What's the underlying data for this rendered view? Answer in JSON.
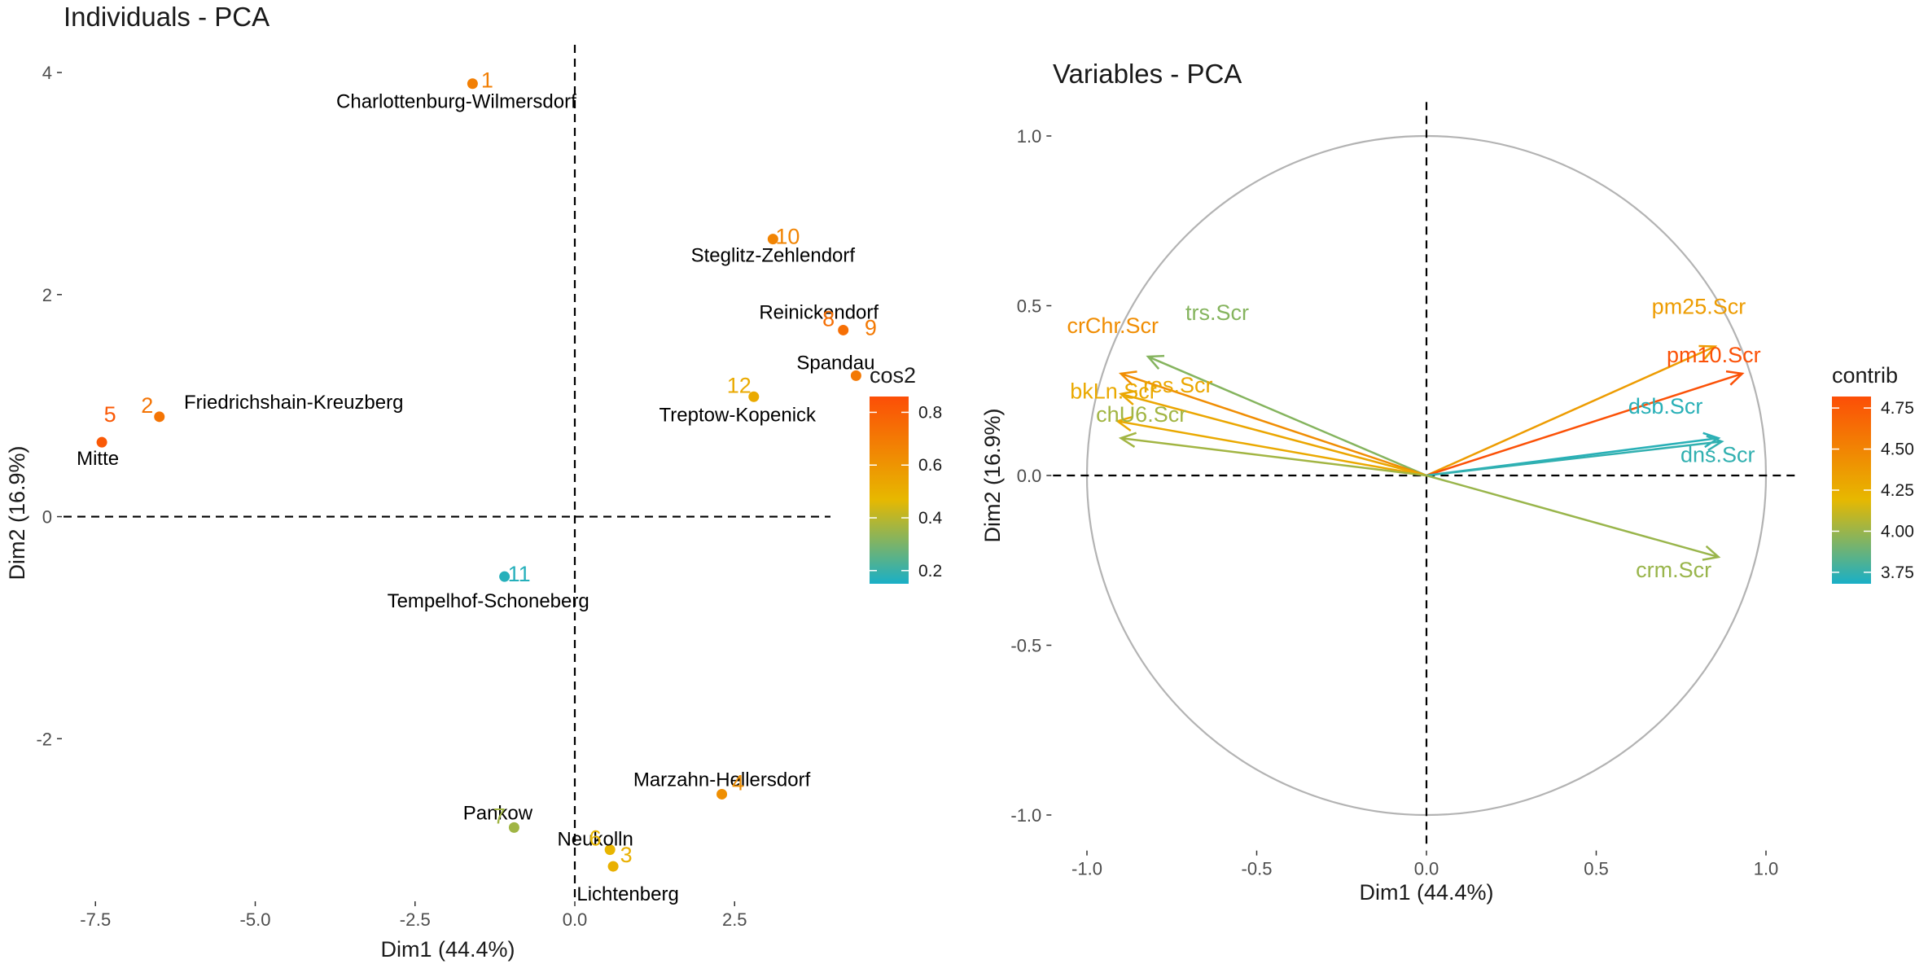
{
  "chart_data": [
    {
      "type": "scatter",
      "title": "Individuals - PCA",
      "xlabel": "Dim1 (44.4%)",
      "ylabel": "Dim2 (16.9%)",
      "xlim": [
        -8,
        4
      ],
      "ylim": [
        -3.45,
        4.25
      ],
      "xticks": [
        -7.5,
        -5.0,
        -2.5,
        0.0,
        2.5
      ],
      "yticks": [
        -2,
        0,
        2,
        4
      ],
      "grid": false,
      "legend": {
        "title": "cos2",
        "position": "right",
        "min": 0.15,
        "max": 0.86,
        "ticks": [
          0.2,
          0.4,
          0.6,
          0.8
        ]
      },
      "points": [
        {
          "num": "1",
          "name": "Charlottenburg-Wilmersdorf",
          "x": -1.6,
          "y": 3.9,
          "cos2": 0.68
        },
        {
          "num": "10",
          "name": "Steglitz-Zehlendorf",
          "x": 3.1,
          "y": 2.5,
          "cos2": 0.66
        },
        {
          "num": "8",
          "name": "Reinickendorf",
          "x": 4.2,
          "y": 1.68,
          "cos2": 0.74
        },
        {
          "num": "9",
          "name": "Spandau",
          "x": 4.4,
          "y": 1.27,
          "cos2": 0.7
        },
        {
          "num": "12",
          "name": "Treptow-Kopenick",
          "x": 2.8,
          "y": 1.08,
          "cos2": 0.52
        },
        {
          "num": "2",
          "name": "Friedrichshain-Kreuzberg",
          "x": -6.5,
          "y": 0.9,
          "cos2": 0.72
        },
        {
          "num": "5",
          "name": "Mitte",
          "x": -7.4,
          "y": 0.67,
          "cos2": 0.82
        },
        {
          "num": "11",
          "name": "Tempelhof-Schoneberg",
          "x": -1.1,
          "y": -0.54,
          "cos2": 0.17
        },
        {
          "num": "4",
          "name": "Marzahn-Hellersdorf",
          "x": 2.3,
          "y": -2.5,
          "cos2": 0.62
        },
        {
          "num": "7",
          "name": "Pankow",
          "x": -0.95,
          "y": -2.8,
          "cos2": 0.36
        },
        {
          "num": "6",
          "name": "Neukolln",
          "x": 0.55,
          "y": -3.0,
          "cos2": 0.48
        },
        {
          "num": "3",
          "name": "Lichtenberg",
          "x": 0.6,
          "y": -3.15,
          "cos2": 0.5
        }
      ]
    },
    {
      "type": "scatter",
      "title": "Variables - PCA",
      "xlabel": "Dim1 (44.4%)",
      "ylabel": "Dim2 (16.9%)",
      "xlim": [
        -1.1,
        1.1
      ],
      "ylim": [
        -1.1,
        1.1
      ],
      "xticks": [
        -1.0,
        -0.5,
        0.0,
        0.5,
        1.0
      ],
      "yticks": [
        -1.0,
        -0.5,
        0.0,
        0.5,
        1.0
      ],
      "grid": false,
      "correlation_circle": true,
      "legend": {
        "title": "contrib",
        "position": "right",
        "min": 3.68,
        "max": 4.82,
        "ticks": [
          3.75,
          4.0,
          4.25,
          4.5,
          4.75
        ]
      },
      "variables": [
        {
          "name": "trs.Scr",
          "x": -0.82,
          "y": 0.35,
          "contrib": 3.95
        },
        {
          "name": "crChr.Scr",
          "x": -0.9,
          "y": 0.3,
          "contrib": 4.45
        },
        {
          "name": "res.Scr",
          "x": -0.9,
          "y": 0.24,
          "contrib": 4.3
        },
        {
          "name": "bkLn.Scr",
          "x": -0.91,
          "y": 0.16,
          "contrib": 4.28
        },
        {
          "name": "chU6.Scr",
          "x": -0.9,
          "y": 0.11,
          "contrib": 4.02
        },
        {
          "name": "pm25.Scr",
          "x": 0.85,
          "y": 0.38,
          "contrib": 4.36
        },
        {
          "name": "pm10.Scr",
          "x": 0.93,
          "y": 0.3,
          "contrib": 4.8
        },
        {
          "name": "dsb.Scr",
          "x": 0.86,
          "y": 0.11,
          "contrib": 3.72
        },
        {
          "name": "dns.Scr",
          "x": 0.87,
          "y": 0.1,
          "contrib": 3.74
        },
        {
          "name": "crm.Scr",
          "x": 0.86,
          "y": -0.24,
          "contrib": 4.0
        }
      ]
    }
  ]
}
